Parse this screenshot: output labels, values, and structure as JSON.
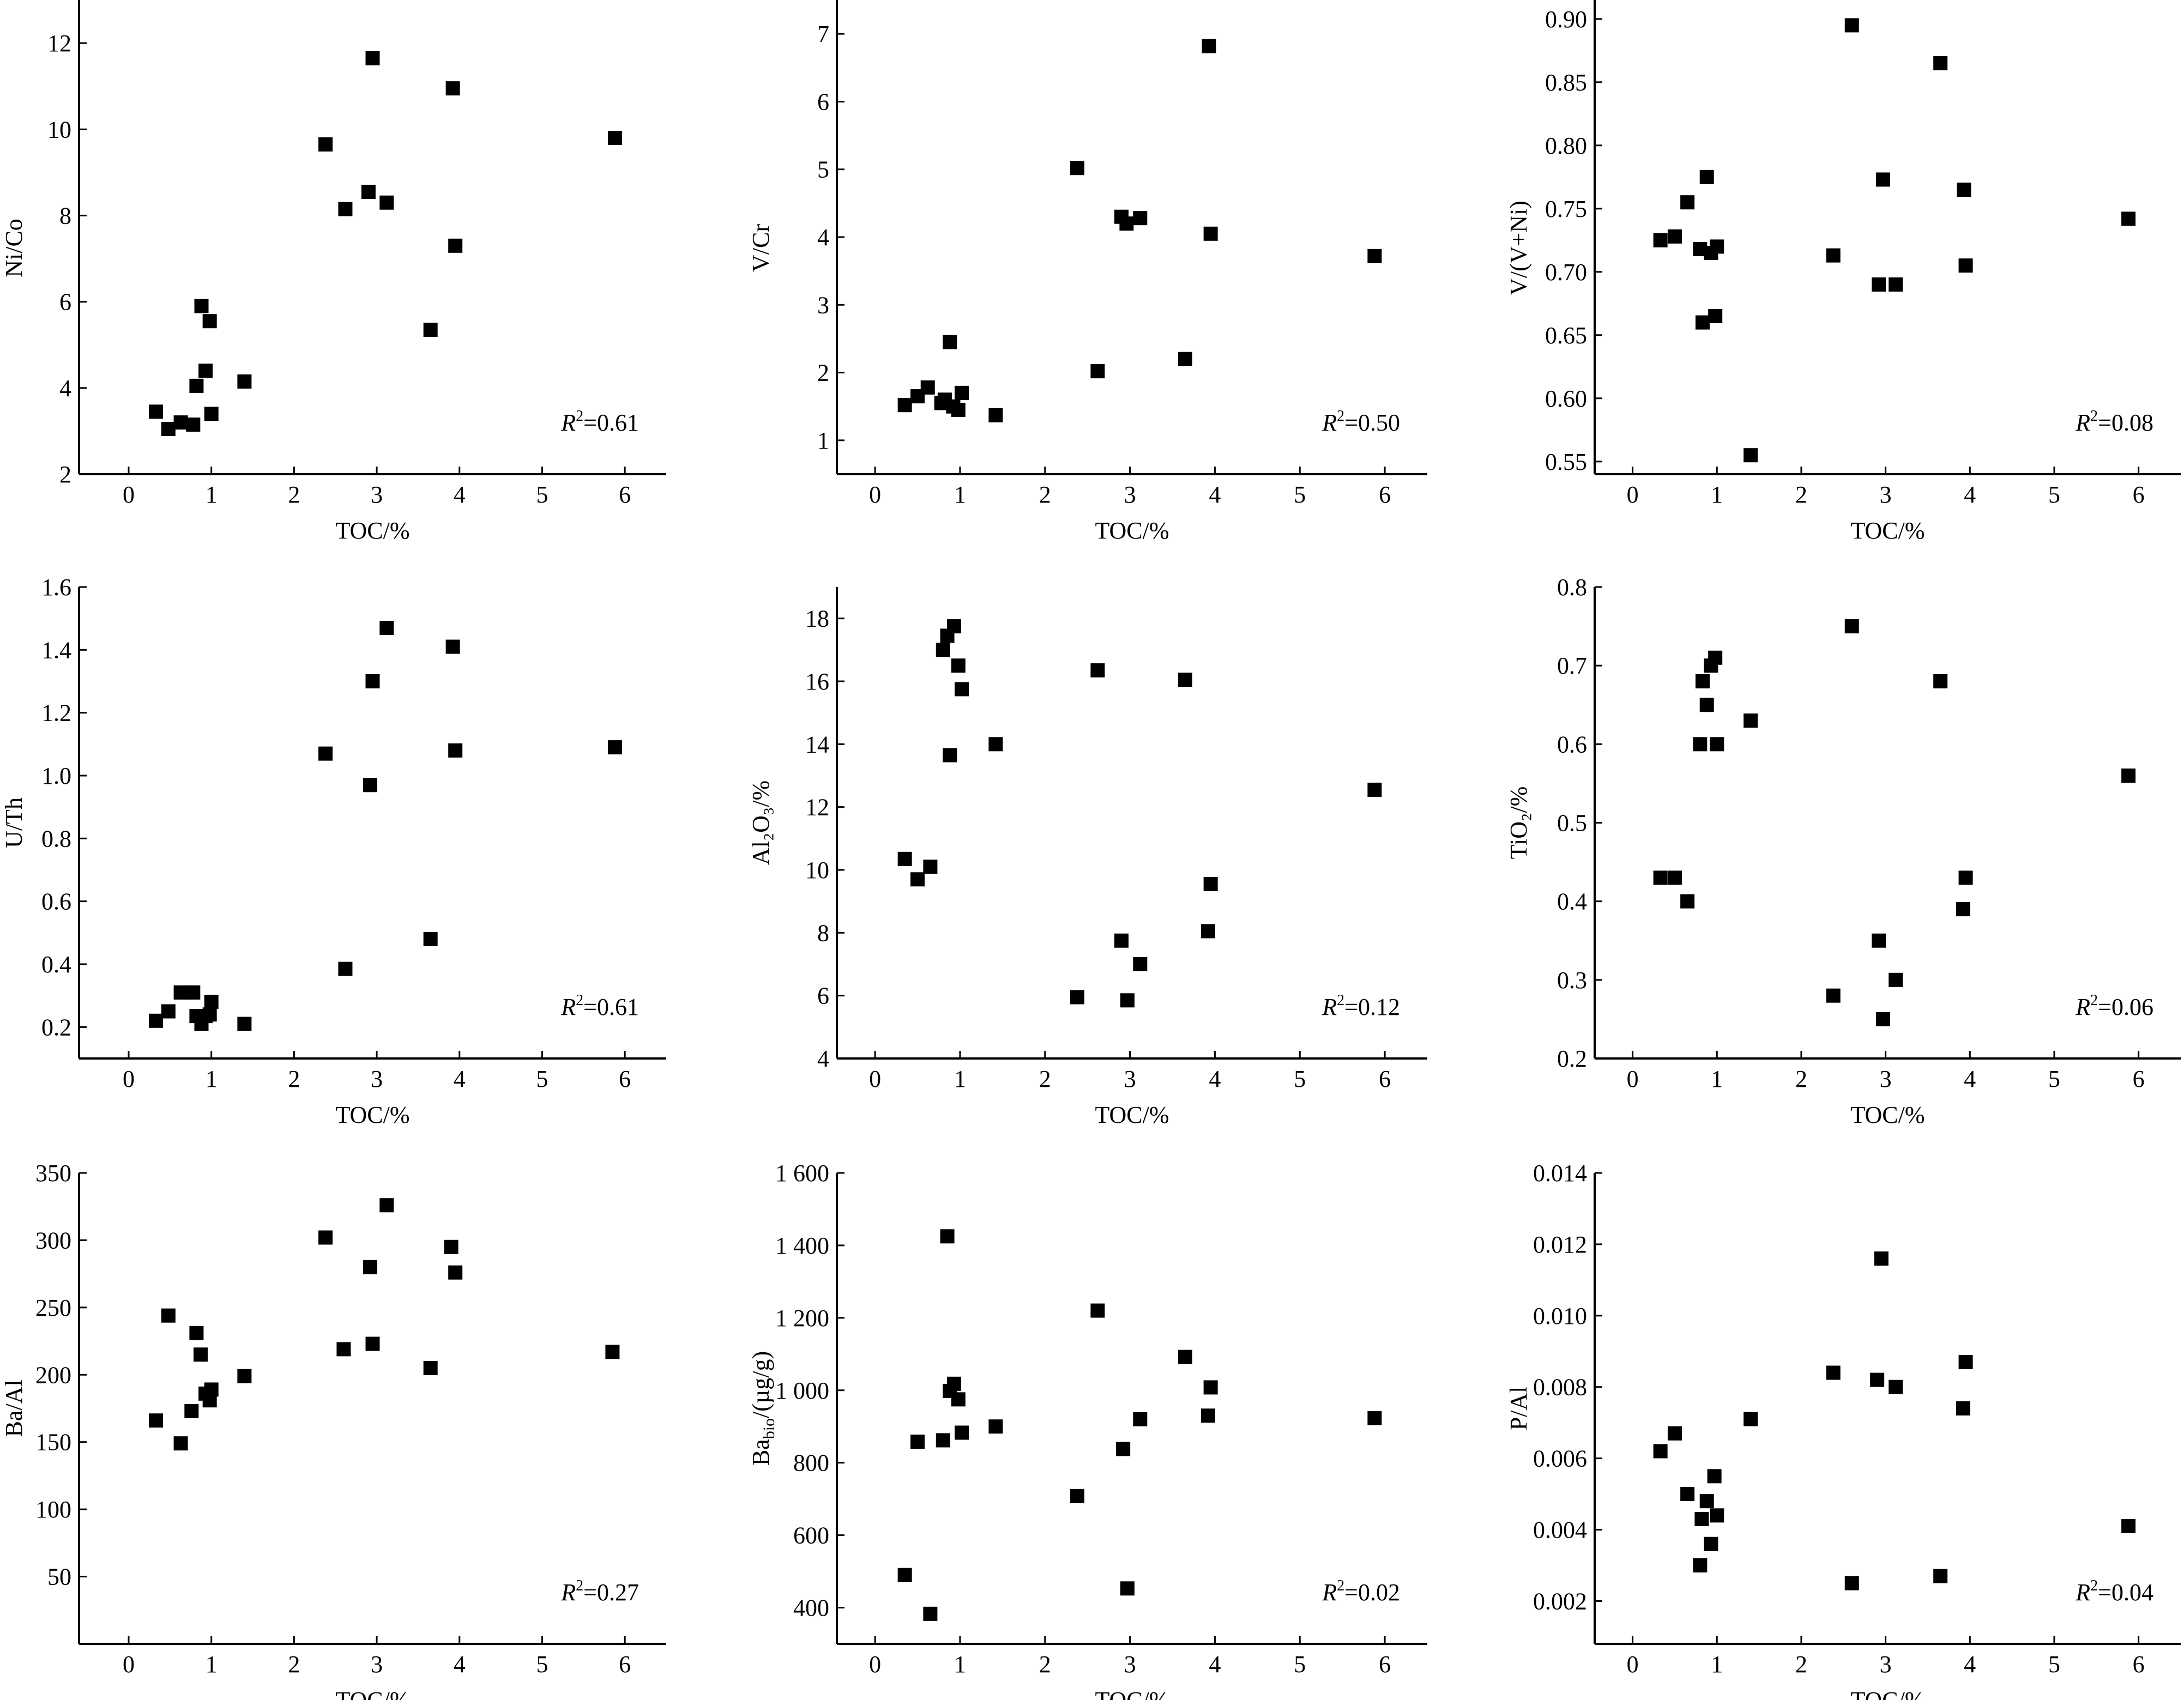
{
  "chart_data": [
    {
      "type": "scatter",
      "xlabel": "TOC/%",
      "ylabel": "Ni/Co",
      "xlim": [
        -0.6,
        6.5
      ],
      "ylim": [
        2,
        13
      ],
      "xticks": [
        0,
        1,
        2,
        3,
        4,
        5,
        6
      ],
      "yticks": [
        2,
        4,
        6,
        8,
        10,
        12
      ],
      "yticklabels": [
        "2",
        "4",
        "6",
        "8",
        "10",
        "12"
      ],
      "r2_label": "=0.61",
      "points": [
        [
          0.33,
          3.45
        ],
        [
          0.48,
          3.05
        ],
        [
          0.63,
          3.2
        ],
        [
          0.78,
          3.15
        ],
        [
          0.82,
          4.05
        ],
        [
          0.88,
          5.9
        ],
        [
          0.93,
          4.4
        ],
        [
          0.98,
          5.55
        ],
        [
          1.0,
          3.4
        ],
        [
          1.4,
          4.15
        ],
        [
          2.38,
          9.65
        ],
        [
          2.62,
          8.15
        ],
        [
          2.9,
          8.55
        ],
        [
          2.95,
          11.65
        ],
        [
          3.12,
          8.3
        ],
        [
          3.65,
          5.35
        ],
        [
          3.92,
          10.95
        ],
        [
          3.95,
          7.3
        ],
        [
          5.88,
          9.8
        ]
      ]
    },
    {
      "type": "scatter",
      "xlabel": "TOC/%",
      "ylabel": "V/Cr",
      "xlim": [
        -0.45,
        6.5
      ],
      "ylim": [
        0.5,
        7.5
      ],
      "xticks": [
        0,
        1,
        2,
        3,
        4,
        5,
        6
      ],
      "yticks": [
        1,
        2,
        3,
        4,
        5,
        6,
        7
      ],
      "yticklabels": [
        "1",
        "2",
        "3",
        "4",
        "5",
        "6",
        "7"
      ],
      "r2_label": "=0.50",
      "points": [
        [
          0.35,
          1.52
        ],
        [
          0.5,
          1.65
        ],
        [
          0.62,
          1.78
        ],
        [
          0.78,
          1.55
        ],
        [
          0.82,
          1.6
        ],
        [
          0.88,
          2.45
        ],
        [
          0.92,
          1.5
        ],
        [
          0.98,
          1.45
        ],
        [
          1.02,
          1.7
        ],
        [
          1.42,
          1.37
        ],
        [
          2.38,
          5.02
        ],
        [
          2.62,
          2.02
        ],
        [
          2.9,
          4.3
        ],
        [
          2.96,
          4.2
        ],
        [
          3.12,
          4.28
        ],
        [
          3.65,
          2.2
        ],
        [
          3.93,
          6.82
        ],
        [
          3.95,
          4.05
        ],
        [
          5.88,
          3.72
        ]
      ]
    },
    {
      "type": "scatter",
      "xlabel": "TOC/%",
      "ylabel": "V/(V+Ni)",
      "xlim": [
        -0.45,
        6.5
      ],
      "ylim": [
        0.54,
        0.915
      ],
      "xticks": [
        0,
        1,
        2,
        3,
        4,
        5,
        6
      ],
      "yticks": [
        0.55,
        0.6,
        0.65,
        0.7,
        0.75,
        0.8,
        0.85,
        0.9
      ],
      "yticklabels": [
        "0.55",
        "0.60",
        "0.65",
        "0.70",
        "0.75",
        "0.80",
        "0.85",
        "0.90"
      ],
      "r2_label": "=0.08",
      "points": [
        [
          0.33,
          0.725
        ],
        [
          0.5,
          0.728
        ],
        [
          0.65,
          0.755
        ],
        [
          0.8,
          0.718
        ],
        [
          0.83,
          0.66
        ],
        [
          0.88,
          0.775
        ],
        [
          0.93,
          0.715
        ],
        [
          0.98,
          0.665
        ],
        [
          1.0,
          0.72
        ],
        [
          1.4,
          0.555
        ],
        [
          2.38,
          0.713
        ],
        [
          2.6,
          0.895
        ],
        [
          2.92,
          0.69
        ],
        [
          2.97,
          0.773
        ],
        [
          3.12,
          0.69
        ],
        [
          3.65,
          0.865
        ],
        [
          3.93,
          0.765
        ],
        [
          3.95,
          0.705
        ],
        [
          5.88,
          0.742
        ]
      ]
    },
    {
      "type": "scatter",
      "xlabel": "TOC/%",
      "ylabel": "U/Th",
      "xlim": [
        -0.6,
        6.5
      ],
      "ylim": [
        0.1,
        1.6
      ],
      "xticks": [
        0,
        1,
        2,
        3,
        4,
        5,
        6
      ],
      "yticks": [
        0.2,
        0.4,
        0.6,
        0.8,
        1.0,
        1.2,
        1.4,
        1.6
      ],
      "yticklabels": [
        "0.2",
        "0.4",
        "0.6",
        "0.8",
        "1.0",
        "1.2",
        "1.4",
        "1.6"
      ],
      "r2_label": "=0.61",
      "points": [
        [
          0.33,
          0.22
        ],
        [
          0.48,
          0.25
        ],
        [
          0.63,
          0.31
        ],
        [
          0.78,
          0.31
        ],
        [
          0.82,
          0.235
        ],
        [
          0.88,
          0.21
        ],
        [
          0.93,
          0.235
        ],
        [
          0.98,
          0.24
        ],
        [
          1.0,
          0.28
        ],
        [
          1.4,
          0.21
        ],
        [
          2.38,
          1.07
        ],
        [
          2.62,
          0.385
        ],
        [
          2.92,
          0.97
        ],
        [
          2.95,
          1.3
        ],
        [
          3.12,
          1.47
        ],
        [
          3.65,
          0.48
        ],
        [
          3.92,
          1.41
        ],
        [
          3.95,
          1.08
        ],
        [
          5.88,
          1.09
        ]
      ]
    },
    {
      "type": "scatter",
      "xlabel": "TOC/%",
      "ylabel": "Al₂O₃/%",
      "xlim": [
        -0.45,
        6.5
      ],
      "ylim": [
        4,
        19
      ],
      "xticks": [
        0,
        1,
        2,
        3,
        4,
        5,
        6
      ],
      "yticks": [
        4,
        6,
        8,
        10,
        12,
        14,
        16,
        18
      ],
      "yticklabels": [
        "4",
        "6",
        "8",
        "10",
        "12",
        "14",
        "16",
        "18"
      ],
      "r2_label": "=0.12",
      "points": [
        [
          0.35,
          10.35
        ],
        [
          0.5,
          9.7
        ],
        [
          0.65,
          10.1
        ],
        [
          0.8,
          17.0
        ],
        [
          0.85,
          17.45
        ],
        [
          0.88,
          13.65
        ],
        [
          0.93,
          17.75
        ],
        [
          0.98,
          16.5
        ],
        [
          1.02,
          15.75
        ],
        [
          1.42,
          14.0
        ],
        [
          2.38,
          5.95
        ],
        [
          2.62,
          16.35
        ],
        [
          2.9,
          7.75
        ],
        [
          2.97,
          5.85
        ],
        [
          3.12,
          7.0
        ],
        [
          3.65,
          16.05
        ],
        [
          3.92,
          8.05
        ],
        [
          3.95,
          9.55
        ],
        [
          5.88,
          12.55
        ]
      ]
    },
    {
      "type": "scatter",
      "xlabel": "TOC/%",
      "ylabel": "TiO₂/%",
      "xlim": [
        -0.45,
        6.5
      ],
      "ylim": [
        0.2,
        0.8
      ],
      "xticks": [
        0,
        1,
        2,
        3,
        4,
        5,
        6
      ],
      "yticks": [
        0.2,
        0.3,
        0.4,
        0.5,
        0.6,
        0.7,
        0.8
      ],
      "yticklabels": [
        "0.2",
        "0.3",
        "0.4",
        "0.5",
        "0.6",
        "0.7",
        "0.8"
      ],
      "r2_label": "=0.06",
      "points": [
        [
          0.33,
          0.43
        ],
        [
          0.5,
          0.43
        ],
        [
          0.65,
          0.4
        ],
        [
          0.8,
          0.6
        ],
        [
          0.83,
          0.68
        ],
        [
          0.88,
          0.65
        ],
        [
          0.93,
          0.7
        ],
        [
          0.98,
          0.71
        ],
        [
          1.0,
          0.6
        ],
        [
          1.4,
          0.63
        ],
        [
          2.38,
          0.28
        ],
        [
          2.6,
          0.75
        ],
        [
          2.92,
          0.35
        ],
        [
          2.97,
          0.25
        ],
        [
          3.12,
          0.3
        ],
        [
          3.65,
          0.68
        ],
        [
          3.92,
          0.39
        ],
        [
          3.95,
          0.43
        ],
        [
          5.88,
          0.56
        ]
      ]
    },
    {
      "type": "scatter",
      "xlabel": "TOC/%",
      "ylabel": "Ba/Al",
      "xlim": [
        -0.6,
        6.5
      ],
      "ylim": [
        0,
        350
      ],
      "xticks": [
        0,
        1,
        2,
        3,
        4,
        5,
        6
      ],
      "yticks": [
        50,
        100,
        150,
        200,
        250,
        300,
        350
      ],
      "yticklabels": [
        "50",
        "100",
        "150",
        "200",
        "250",
        "300",
        "350"
      ],
      "r2_label": "=0.27",
      "points": [
        [
          0.33,
          166
        ],
        [
          0.48,
          244
        ],
        [
          0.63,
          149
        ],
        [
          0.76,
          173
        ],
        [
          0.82,
          231
        ],
        [
          0.87,
          215
        ],
        [
          0.93,
          186
        ],
        [
          0.98,
          181
        ],
        [
          1.0,
          189
        ],
        [
          1.4,
          199
        ],
        [
          2.38,
          302
        ],
        [
          2.6,
          219
        ],
        [
          2.92,
          280
        ],
        [
          2.95,
          223
        ],
        [
          3.12,
          326
        ],
        [
          3.65,
          205
        ],
        [
          3.9,
          295
        ],
        [
          3.95,
          276
        ],
        [
          5.85,
          217
        ]
      ]
    },
    {
      "type": "scatter",
      "xlabel": "TOC/%",
      "ylabel": "Ba",
      "ylabel_sub": "bio",
      "ylabel_suffix": "/(µg/g)",
      "xlim": [
        -0.45,
        6.5
      ],
      "ylim": [
        300,
        1600
      ],
      "xticks": [
        0,
        1,
        2,
        3,
        4,
        5,
        6
      ],
      "yticks": [
        400,
        600,
        800,
        1000,
        1200,
        1400,
        1600
      ],
      "yticklabels": [
        "400",
        "600",
        "800",
        "1 000",
        "1 200",
        "1 400",
        "1 600"
      ],
      "r2_label": "=0.02",
      "points": [
        [
          0.35,
          490
        ],
        [
          0.5,
          858
        ],
        [
          0.65,
          383
        ],
        [
          0.8,
          862
        ],
        [
          0.85,
          1425
        ],
        [
          0.88,
          998
        ],
        [
          0.93,
          1018
        ],
        [
          0.98,
          975
        ],
        [
          1.02,
          883
        ],
        [
          1.42,
          900
        ],
        [
          2.38,
          708
        ],
        [
          2.62,
          1220
        ],
        [
          2.92,
          838
        ],
        [
          2.97,
          453
        ],
        [
          3.12,
          920
        ],
        [
          3.65,
          1092
        ],
        [
          3.92,
          930
        ],
        [
          3.95,
          1008
        ],
        [
          5.88,
          923
        ]
      ]
    },
    {
      "type": "scatter",
      "xlabel": "TOC/%",
      "ylabel": "P/Al",
      "xlim": [
        -0.45,
        6.5
      ],
      "ylim": [
        0.0008,
        0.014
      ],
      "xticks": [
        0,
        1,
        2,
        3,
        4,
        5,
        6
      ],
      "yticks": [
        0.002,
        0.004,
        0.006,
        0.008,
        0.01,
        0.012,
        0.014
      ],
      "yticklabels": [
        "0.002",
        "0.004",
        "0.006",
        "0.008",
        "0.010",
        "0.012",
        "0.014"
      ],
      "r2_label": "=0.04",
      "points": [
        [
          0.33,
          0.0062
        ],
        [
          0.5,
          0.0067
        ],
        [
          0.65,
          0.005
        ],
        [
          0.8,
          0.003
        ],
        [
          0.82,
          0.0043
        ],
        [
          0.88,
          0.0048
        ],
        [
          0.93,
          0.0036
        ],
        [
          0.97,
          0.0055
        ],
        [
          1.0,
          0.0044
        ],
        [
          1.4,
          0.0071
        ],
        [
          2.38,
          0.0084
        ],
        [
          2.6,
          0.0025
        ],
        [
          2.9,
          0.0082
        ],
        [
          2.95,
          0.0116
        ],
        [
          3.12,
          0.008
        ],
        [
          3.65,
          0.0027
        ],
        [
          3.92,
          0.0074
        ],
        [
          3.95,
          0.0087
        ],
        [
          5.88,
          0.0041
        ]
      ]
    }
  ]
}
